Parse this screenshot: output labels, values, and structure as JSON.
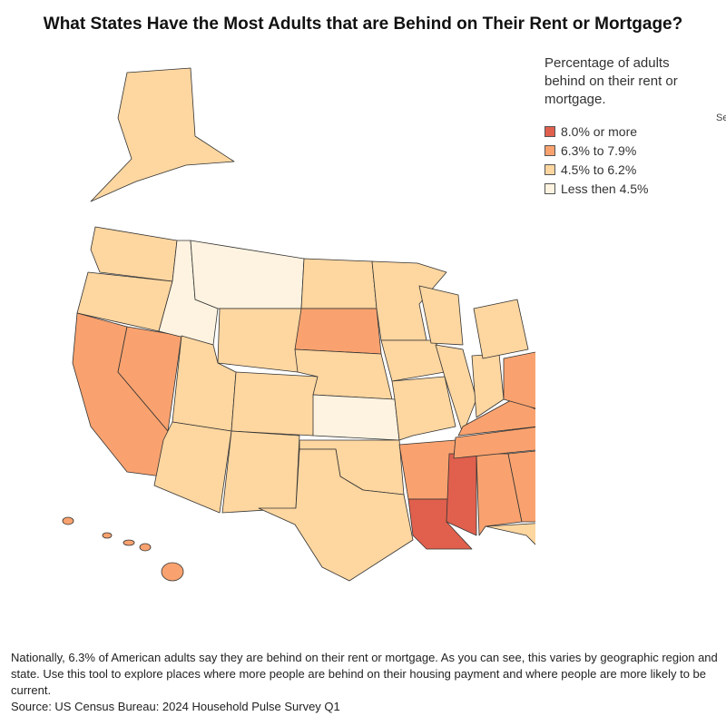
{
  "title": "What States Have the Most Adults that are Behind on Their Rent or Mortgage?",
  "legend": {
    "title": "Percentage of adults behind on their rent or mortgage.",
    "items": [
      {
        "label": "8.0% or more",
        "color": "#e0604d"
      },
      {
        "label": "6.3% to 7.9%",
        "color": "#f9a26f"
      },
      {
        "label": "4.5% to 6.2%",
        "color": "#fdd6a0"
      },
      {
        "label": "Less then 4.5%",
        "color": "#fef3e0"
      }
    ]
  },
  "side_label": "Se",
  "note": "Nationally, 6.3% of American adults say they are behind on their rent or mortgage. As you can see, this varies by geographic region and state. Use this tool to explore places where more people are behind on their housing payment and where people are more likely to be current.",
  "source": "Source: US Census Bureau: 2024 Household Pulse Survey Q1"
}
